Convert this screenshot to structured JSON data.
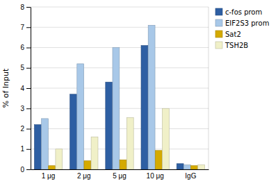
{
  "chart_data": {
    "type": "bar",
    "categories": [
      "1 μg",
      "2 μg",
      "5 μg",
      "10 μg",
      "IgG"
    ],
    "series": [
      {
        "name": "c-fos prom",
        "color": "#2E5FA3",
        "values": [
          2.2,
          3.7,
          4.3,
          6.1,
          0.28
        ]
      },
      {
        "name": "EIF2S3 prom",
        "color": "#A8C8E8",
        "values": [
          2.5,
          5.2,
          6.0,
          7.1,
          0.22
        ]
      },
      {
        "name": "Sat2",
        "color": "#D4AA00",
        "values": [
          0.18,
          0.42,
          0.47,
          0.93,
          0.18
        ]
      },
      {
        "name": "TSH2B",
        "color": "#F0F0C8",
        "values": [
          1.0,
          1.6,
          2.55,
          3.0,
          0.22
        ]
      }
    ],
    "ylabel": "% of Input",
    "ylim": [
      0,
      8
    ],
    "yticks": [
      0,
      1,
      2,
      3,
      4,
      5,
      6,
      7,
      8
    ],
    "grid": true,
    "legend": "upper right"
  }
}
